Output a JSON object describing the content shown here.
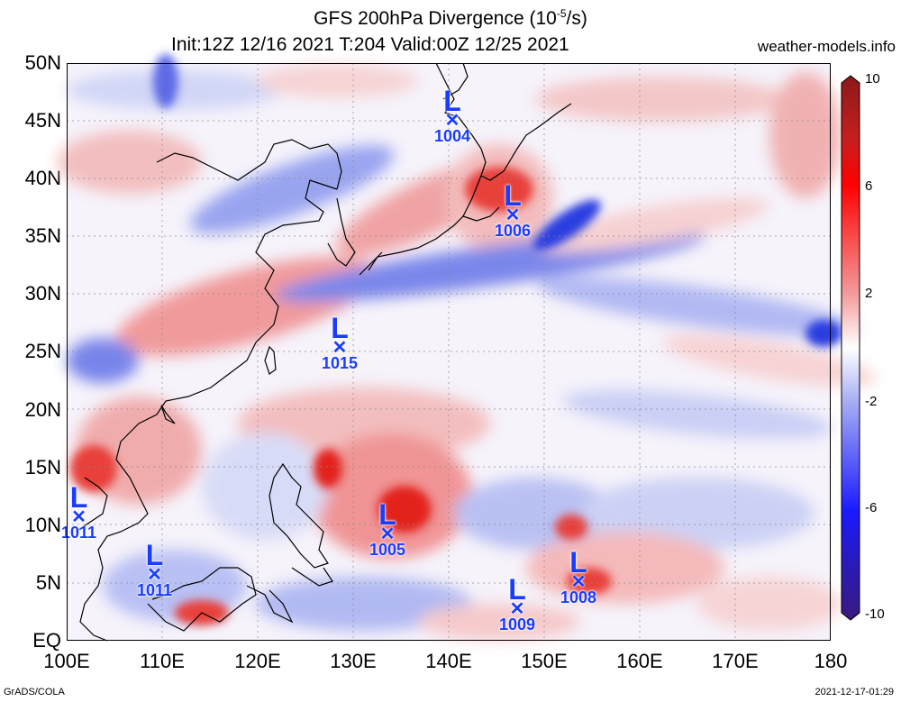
{
  "header": {
    "title_main": "GFS 200hPa Divergence (10",
    "title_sup": "-5",
    "title_end": "/s)",
    "subtitle": "Init:12Z 12/16 2021 T:204 Valid:00Z 12/25 2021",
    "site": "weather-models.info"
  },
  "axes": {
    "lat_labels": [
      "50N",
      "45N",
      "40N",
      "35N",
      "30N",
      "25N",
      "20N",
      "15N",
      "10N",
      "5N",
      "EQ"
    ],
    "lon_labels": [
      "100E",
      "110E",
      "120E",
      "130E",
      "140E",
      "150E",
      "160E",
      "170E",
      "180"
    ]
  },
  "colorbar": {
    "labels": [
      "10",
      "6",
      "2",
      "-2",
      "-6",
      "-10"
    ],
    "colors": [
      "#8b1a1a",
      "#e0302a",
      "#f28888",
      "#f9dcdc",
      "#ffffff",
      "#dbe0fa",
      "#8a92ee",
      "#2a3ae0",
      "#3a18a0"
    ]
  },
  "lows": [
    {
      "label": "L",
      "pressure": "1004"
    },
    {
      "label": "L",
      "pressure": "1006"
    },
    {
      "label": "L",
      "pressure": "1015"
    },
    {
      "label": "L",
      "pressure": "1011"
    },
    {
      "label": "L",
      "pressure": "1011"
    },
    {
      "label": "L",
      "pressure": "1005"
    },
    {
      "label": "L",
      "pressure": "1009"
    },
    {
      "label": "L",
      "pressure": "1008"
    }
  ],
  "footer": {
    "left": "GrADS/COLA",
    "right": "2021-12-17-01:29"
  }
}
